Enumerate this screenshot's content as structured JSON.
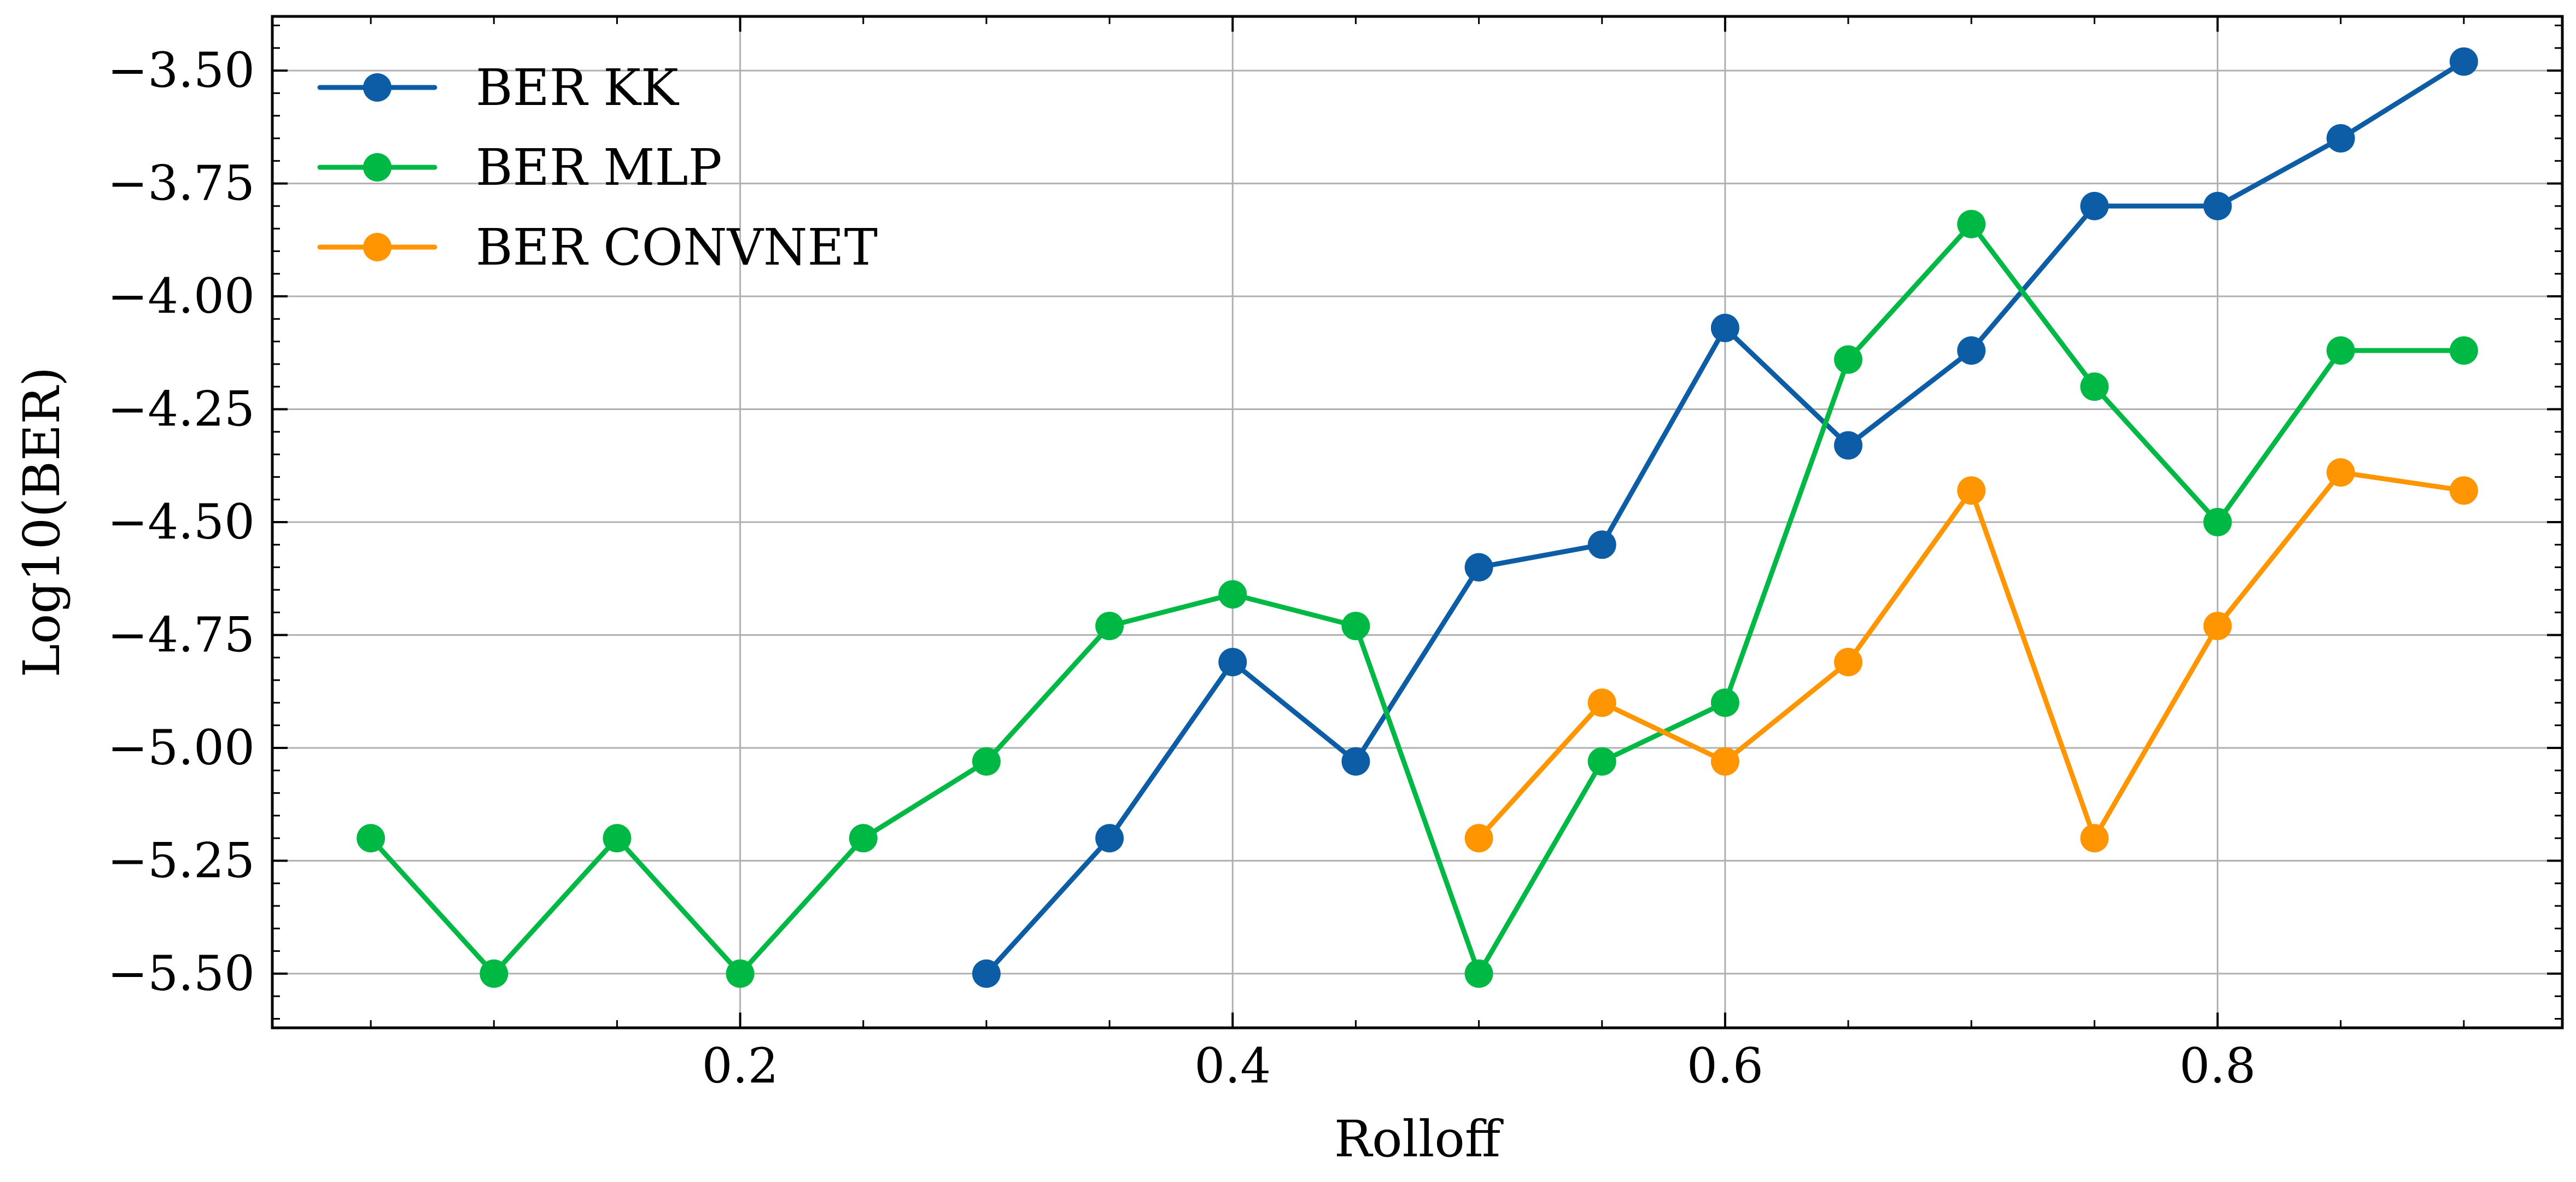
{
  "chart_data": {
    "type": "line",
    "title": "",
    "xlabel": "Rolloff",
    "ylabel": "Log10(BER)",
    "xlim": [
      0.01,
      0.94
    ],
    "ylim": [
      -5.62,
      -3.38
    ],
    "xticks": [
      0.2,
      0.4,
      0.6,
      0.8
    ],
    "xtick_labels": [
      "0.2",
      "0.4",
      "0.6",
      "0.8"
    ],
    "yticks": [
      -3.5,
      -3.75,
      -4.0,
      -4.25,
      -4.5,
      -4.75,
      -5.0,
      -5.25,
      -5.5
    ],
    "ytick_labels": [
      "−3.50",
      "−3.75",
      "−4.00",
      "−4.25",
      "−4.50",
      "−4.75",
      "−5.00",
      "−5.25",
      "−5.50"
    ],
    "grid": true,
    "legend_position": "top-left",
    "series": [
      {
        "name": "BER KK",
        "color": "#0C5DA5",
        "x": [
          0.3,
          0.35,
          0.4,
          0.45,
          0.5,
          0.55,
          0.6,
          0.65,
          0.7,
          0.75,
          0.8,
          0.85,
          0.9
        ],
        "y": [
          -5.5,
          -5.2,
          -4.81,
          -5.03,
          -4.6,
          -4.55,
          -4.07,
          -4.33,
          -4.12,
          -3.8,
          -3.8,
          -3.65,
          -3.48
        ]
      },
      {
        "name": "BER MLP",
        "color": "#00B945",
        "x": [
          0.05,
          0.1,
          0.15,
          0.2,
          0.25,
          0.3,
          0.35,
          0.4,
          0.45,
          0.5,
          0.55,
          0.6,
          0.65,
          0.7,
          0.75,
          0.8,
          0.85,
          0.9
        ],
        "y": [
          -5.2,
          -5.5,
          -5.2,
          -5.5,
          -5.2,
          -5.03,
          -4.73,
          -4.66,
          -4.73,
          -5.5,
          -5.03,
          -4.9,
          -4.14,
          -3.84,
          -4.2,
          -4.5,
          -4.12,
          -4.12
        ]
      },
      {
        "name": "BER CONVNET",
        "color": "#FF9500",
        "x": [
          0.5,
          0.55,
          0.6,
          0.65,
          0.7,
          0.75,
          0.8,
          0.85,
          0.9
        ],
        "y": [
          -5.2,
          -4.9,
          -5.03,
          -4.81,
          -4.43,
          -5.2,
          -4.73,
          -4.39,
          -4.43
        ]
      }
    ]
  }
}
